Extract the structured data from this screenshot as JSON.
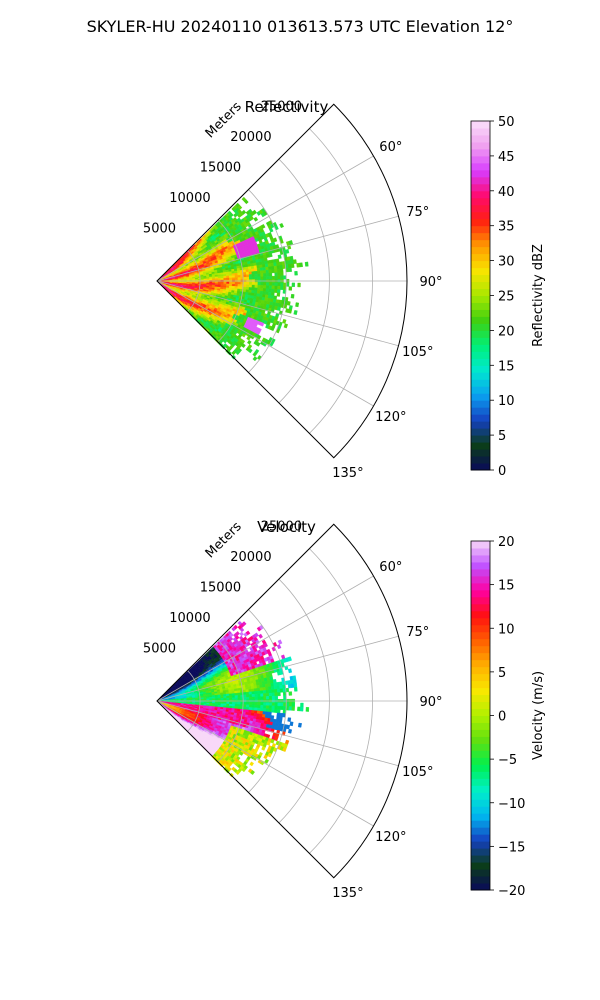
{
  "figure_title": "SKYLER-HU  20240110  013613.573 UTC Elevation 12°",
  "chart_data": [
    {
      "type": "heatmap",
      "projection": "polar-sector",
      "title": "Reflectivity",
      "radial_label": "Meters",
      "radial_ticks": [
        "5000",
        "10000",
        "15000",
        "20000",
        "25000"
      ],
      "radial_tick_values": [
        5000,
        10000,
        15000,
        20000,
        25000
      ],
      "rmax": 29000,
      "azimuth_range": [
        45,
        135
      ],
      "angle_ticks": [
        "60°",
        "75°",
        "90°",
        "105°",
        "120°",
        "135°"
      ],
      "angle_tick_values": [
        60,
        75,
        90,
        105,
        120,
        135
      ],
      "grid": true,
      "colorbar": {
        "label": "Reflectivity dBZ",
        "range": [
          0,
          50
        ],
        "ticks": [
          "0",
          "5",
          "10",
          "15",
          "20",
          "25",
          "30",
          "35",
          "40",
          "45",
          "50"
        ],
        "colors": [
          "#0a0a5a",
          "#0b3d1a",
          "#1540c0",
          "#0aa0f0",
          "#00e8d0",
          "#00f078",
          "#40d010",
          "#a8e800",
          "#f8e400",
          "#ff9a00",
          "#ff2010",
          "#ff0a6e",
          "#d83cff",
          "#f0a0f0",
          "#fbe0fb"
        ]
      },
      "data_extent_m": 16500,
      "pattern": "reflectivity"
    },
    {
      "type": "heatmap",
      "projection": "polar-sector",
      "title": "Velocity",
      "radial_label": "Meters",
      "radial_ticks": [
        "5000",
        "10000",
        "15000",
        "20000",
        "25000"
      ],
      "radial_tick_values": [
        5000,
        10000,
        15000,
        20000,
        25000
      ],
      "rmax": 29000,
      "azimuth_range": [
        45,
        135
      ],
      "angle_ticks": [
        "60°",
        "75°",
        "90°",
        "105°",
        "120°",
        "135°"
      ],
      "angle_tick_values": [
        60,
        75,
        90,
        105,
        120,
        135
      ],
      "grid": true,
      "colorbar": {
        "label": "Velocity (m/s)",
        "range": [
          -20,
          20
        ],
        "ticks": [
          "−20",
          "−15",
          "−10",
          "−5",
          "0",
          "5",
          "10",
          "15",
          "20"
        ],
        "colors": [
          "#0a0a5a",
          "#0b3d1a",
          "#1540c0",
          "#00b8f0",
          "#00f0c8",
          "#00f050",
          "#60e010",
          "#b0f000",
          "#f8e800",
          "#ffb000",
          "#ff6000",
          "#ff1010",
          "#ff00a0",
          "#c050ff",
          "#f8d8f8"
        ]
      },
      "data_extent_m": 16500,
      "pattern": "velocity"
    }
  ]
}
